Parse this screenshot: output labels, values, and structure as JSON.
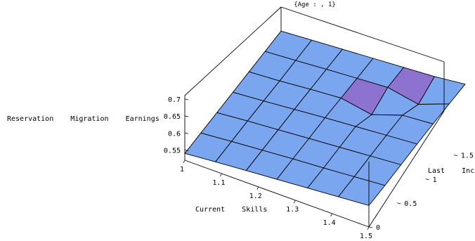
{
  "chart_data": {
    "type": "surface3d",
    "title": "{Age : , 1}",
    "zlabel": "Reservation    Migration    Earnings",
    "xlabel": "Current    Skills",
    "ylabel": "Last    Income",
    "x_ticks": [
      "1",
      "1.1",
      "1.2",
      "1.3",
      "1.4",
      "1.5"
    ],
    "y_ticks": [
      "0",
      "0.5",
      "1",
      "1.5"
    ],
    "z_ticks": [
      "0.55",
      "0.6",
      "0.65",
      "0.7"
    ],
    "xlim": [
      1,
      1.5
    ],
    "ylim": [
      0,
      1.7
    ],
    "zlim": [
      0.52,
      0.71
    ],
    "x": [
      1.0,
      1.0833,
      1.1667,
      1.25,
      1.3333,
      1.4167,
      1.5
    ],
    "y": [
      0.0,
      0.2833,
      0.5667,
      0.85,
      1.1333,
      1.4167,
      1.7
    ],
    "z": [
      [
        0.54,
        0.56,
        0.58,
        0.6,
        0.62,
        0.64,
        0.66
      ],
      [
        0.548,
        0.568,
        0.588,
        0.607,
        0.626,
        0.646,
        0.666
      ],
      [
        0.555,
        0.575,
        0.595,
        0.615,
        0.634,
        0.653,
        0.672
      ],
      [
        0.562,
        0.582,
        0.602,
        0.623,
        0.641,
        0.659,
        0.678
      ],
      [
        0.569,
        0.588,
        0.609,
        0.63,
        0.625,
        0.665,
        0.684
      ],
      [
        0.576,
        0.595,
        0.616,
        0.637,
        0.656,
        0.648,
        0.69
      ],
      [
        0.583,
        0.602,
        0.623,
        0.644,
        0.663,
        0.682,
        0.7
      ]
    ],
    "colors": {
      "surface_light": "#7aa6f0",
      "surface_dark": "#8e72d0",
      "surface_pale": "#c8c8e6"
    }
  }
}
